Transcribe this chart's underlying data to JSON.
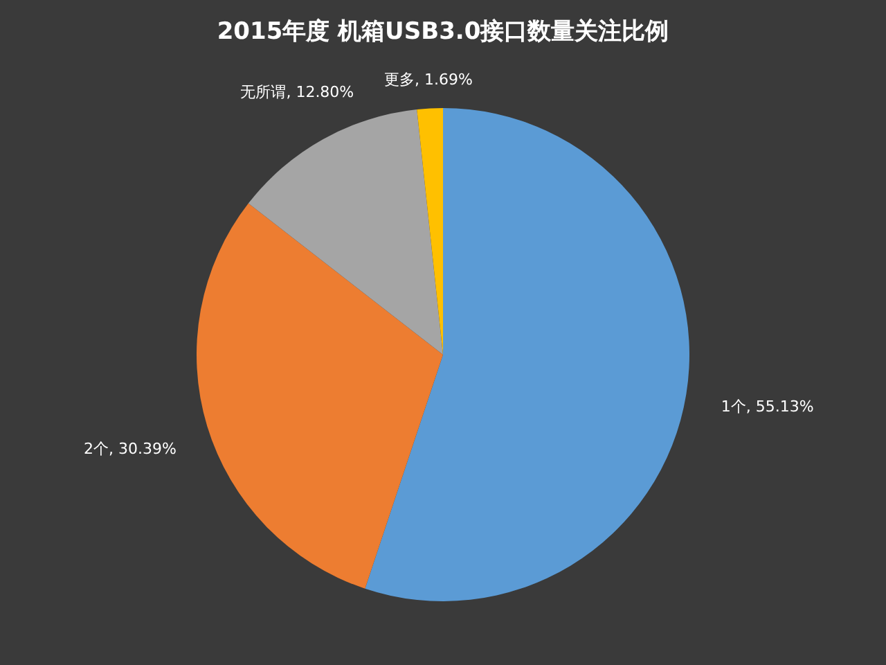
{
  "chart_data": {
    "type": "pie",
    "title": "2015年度 机箱USB3.0接口数量关注比例",
    "categories": [
      "1个",
      "2个",
      "无所谓",
      "更多"
    ],
    "values": [
      55.13,
      30.39,
      12.8,
      1.69
    ],
    "colors": [
      "#5b9bd5",
      "#ed7d31",
      "#a5a5a5",
      "#ffc000"
    ],
    "value_labels": [
      "55.13%",
      "30.39%",
      "12.80%",
      "1.69%"
    ],
    "legend": false
  }
}
